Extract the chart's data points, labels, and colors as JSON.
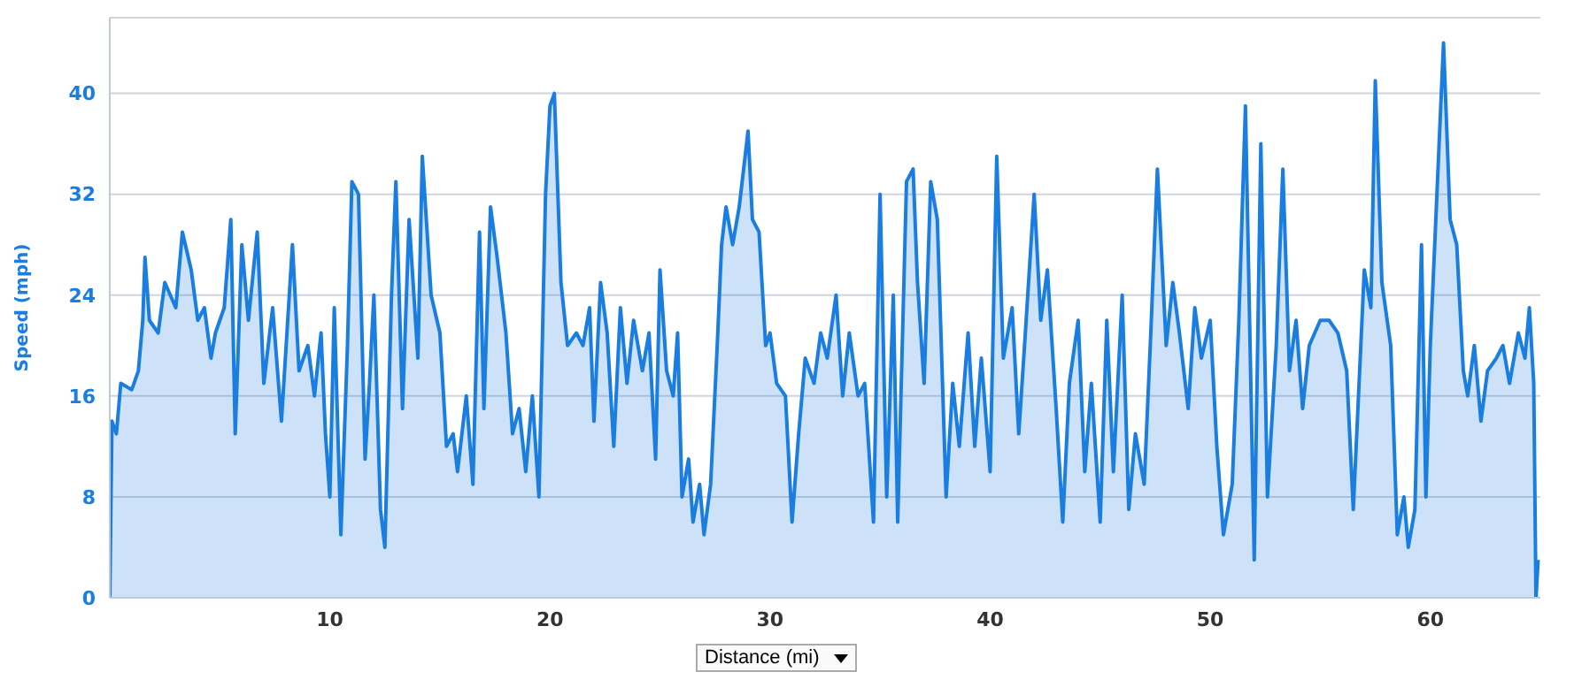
{
  "chart_data": {
    "type": "area",
    "xlabel": "Distance (mi)",
    "ylabel": "Speed (mph)",
    "xlim": [
      0,
      65
    ],
    "ylim": [
      0,
      46
    ],
    "xticks": [
      10,
      20,
      30,
      40,
      50,
      60
    ],
    "yticks": [
      0,
      8,
      16,
      24,
      32,
      40
    ],
    "grid": "y",
    "x": [
      0,
      0.1,
      0.3,
      0.5,
      1,
      1.3,
      1.5,
      1.6,
      1.8,
      2.2,
      2.5,
      3,
      3.3,
      3.7,
      4,
      4.3,
      4.6,
      4.8,
      5.2,
      5.5,
      5.7,
      6,
      6.3,
      6.7,
      7,
      7.4,
      7.8,
      8.3,
      8.6,
      9,
      9.3,
      9.6,
      9.8,
      10,
      10.2,
      10.5,
      10.8,
      11,
      11.3,
      11.6,
      11.8,
      12,
      12.3,
      12.5,
      12.8,
      13,
      13.3,
      13.6,
      14,
      14.2,
      14.6,
      15,
      15.3,
      15.6,
      15.8,
      16.2,
      16.5,
      16.8,
      17,
      17.3,
      17.6,
      18,
      18.3,
      18.6,
      18.9,
      19.2,
      19.5,
      19.8,
      20,
      20.2,
      20.5,
      20.8,
      21.2,
      21.5,
      21.8,
      22,
      22.3,
      22.6,
      22.9,
      23.2,
      23.5,
      23.8,
      24.2,
      24.5,
      24.8,
      25,
      25.3,
      25.6,
      25.8,
      26,
      26.3,
      26.5,
      26.8,
      27,
      27.3,
      27.6,
      27.8,
      28,
      28.3,
      28.6,
      29,
      29.2,
      29.5,
      29.8,
      30,
      30.3,
      30.7,
      31,
      31.3,
      31.6,
      32,
      32.3,
      32.6,
      33,
      33.3,
      33.6,
      34,
      34.3,
      34.7,
      35,
      35.3,
      35.6,
      35.8,
      36.2,
      36.5,
      36.7,
      37,
      37.3,
      37.6,
      38,
      38.3,
      38.6,
      39,
      39.3,
      39.6,
      40,
      40.3,
      40.6,
      41,
      41.3,
      41.6,
      42,
      42.3,
      42.6,
      43,
      43.3,
      43.6,
      44,
      44.3,
      44.6,
      45,
      45.3,
      45.6,
      46,
      46.3,
      46.6,
      47,
      47.3,
      47.6,
      48,
      48.3,
      48.6,
      49,
      49.3,
      49.6,
      50,
      50.3,
      50.6,
      51,
      51.3,
      51.6,
      52,
      52.3,
      52.6,
      53,
      53.3,
      53.6,
      53.9,
      54.2,
      54.5,
      55,
      55.4,
      55.8,
      56.2,
      56.5,
      57,
      57.3,
      57.5,
      57.8,
      58.2,
      58.5,
      58.8,
      59,
      59.3,
      59.6,
      59.8,
      60,
      60.4,
      60.6,
      60.9,
      61.2,
      61.5,
      61.7,
      62,
      62.3,
      62.6,
      63,
      63.3,
      63.6,
      64,
      64.3,
      64.5,
      64.7,
      64.8,
      64.9
    ],
    "series": [
      {
        "color": "#1a7de0",
        "values": [
          0,
          14,
          13,
          17,
          16.5,
          18,
          22,
          27,
          22,
          21,
          25,
          23,
          29,
          26,
          22,
          23,
          19,
          21,
          23,
          30,
          13,
          28,
          22,
          29,
          17,
          23,
          14,
          28,
          18,
          20,
          16,
          21,
          13,
          8,
          23,
          5,
          20,
          33,
          32,
          11,
          17,
          24,
          7,
          4,
          24,
          33,
          15,
          30,
          19,
          35,
          24,
          21,
          12,
          13,
          10,
          16,
          9,
          29,
          15,
          31,
          27,
          21,
          13,
          15,
          10,
          16,
          8,
          32,
          39,
          40,
          25,
          20,
          21,
          20,
          23,
          14,
          25,
          21,
          12,
          23,
          17,
          22,
          18,
          21,
          11,
          26,
          18,
          16,
          21,
          8,
          11,
          6,
          9,
          5,
          9,
          20,
          28,
          31,
          28,
          31,
          37,
          30,
          29,
          20,
          21,
          17,
          16,
          6,
          13,
          19,
          17,
          21,
          19,
          24,
          16,
          21,
          16,
          17,
          6,
          32,
          8,
          24,
          6,
          33,
          34,
          25,
          17,
          33,
          30,
          8,
          17,
          12,
          21,
          12,
          19,
          10,
          35,
          19,
          23,
          13,
          21,
          32,
          22,
          26,
          15,
          6,
          17,
          22,
          10,
          17,
          6,
          22,
          10,
          24,
          7,
          13,
          9,
          21,
          34,
          20,
          25,
          21,
          15,
          23,
          19,
          22,
          12,
          5,
          9,
          22,
          39,
          3,
          36,
          8,
          20,
          34,
          18,
          22,
          15,
          20,
          22,
          22,
          21,
          18,
          7,
          26,
          23,
          41,
          25,
          20,
          5,
          8,
          4,
          7,
          28,
          8,
          20,
          36,
          44,
          30,
          28,
          18,
          16,
          20,
          14,
          18,
          19,
          20,
          17,
          21,
          19,
          23,
          17,
          0,
          3
        ]
      }
    ]
  }
}
